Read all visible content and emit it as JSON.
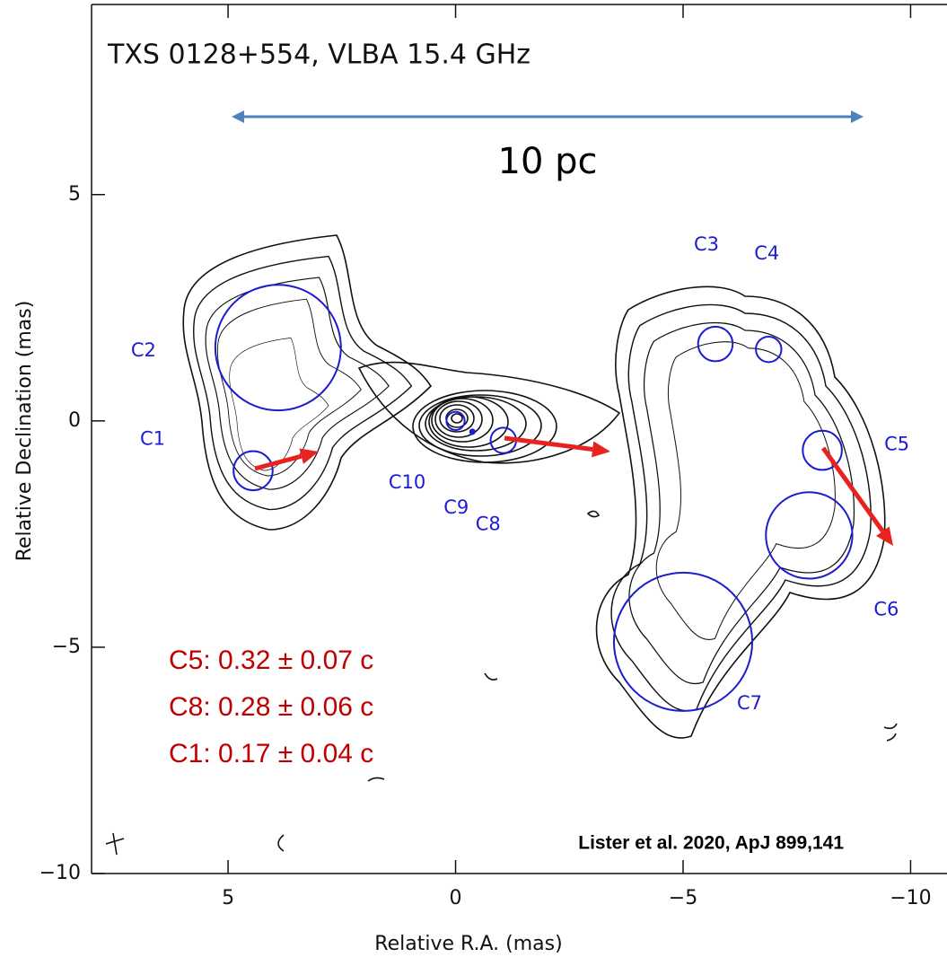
{
  "chart_data": {
    "type": "contour-map",
    "title": "TXS 0128+554, VLBA 15.4 GHz",
    "xlabel": "Relative R.A. (mas)",
    "ylabel": "Relative Declination (mas)",
    "xlim": [
      8.0,
      -10.8
    ],
    "ylim": [
      -10.0,
      9.2
    ],
    "xticks": [
      5,
      0,
      {
        "value": -5,
        "label": "−5"
      },
      {
        "value": -10,
        "label": "−10"
      }
    ],
    "yticks": [
      5,
      0,
      {
        "value": -5,
        "label": "−5"
      },
      {
        "value": -10,
        "label": "−10"
      }
    ],
    "components": {
      "names": [
        "C1",
        "C2",
        "C3",
        "C4",
        "C5",
        "C6",
        "C7",
        "C8",
        "C9",
        "C10"
      ],
      "x": [
        4.45,
        3.9,
        -5.71,
        -6.88,
        -8.06,
        -7.77,
        -5.0,
        -1.05,
        -0.37,
        0.0
      ],
      "y": [
        -1.1,
        1.62,
        1.7,
        1.58,
        -0.65,
        -2.53,
        -4.88,
        -0.43,
        -0.24,
        0.0
      ],
      "radius": [
        0.43,
        1.38,
        0.38,
        0.28,
        0.43,
        0.95,
        1.52,
        0.28,
        0.05,
        0.2
      ],
      "color": "#1c1cd0"
    },
    "scale_bar": "10 pc",
    "scale_bar_color": "#4f81bd",
    "annotations": [
      "C5: 0.32 ± 0.07 c",
      "C8: 0.28 ± 0.06 c",
      "C1: 0.17 ± 0.04 c"
    ],
    "annotation_color": "#c00000",
    "arrow_color": "#e8231f",
    "credit": "Lister et al. 2020, ApJ 899,141"
  }
}
